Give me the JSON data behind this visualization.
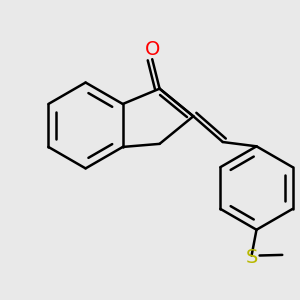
{
  "background_color": "#e9e9e9",
  "bond_color": "#000000",
  "bond_width": 1.8,
  "figsize": [
    3.0,
    3.0
  ],
  "dpi": 100,
  "O_color": "#ff0000",
  "S_color": "#b8b800",
  "O_label": "O",
  "S_label": "S",
  "font_size": 14,
  "xlim": [
    -2.2,
    2.6
  ],
  "ylim": [
    -2.8,
    1.8
  ]
}
